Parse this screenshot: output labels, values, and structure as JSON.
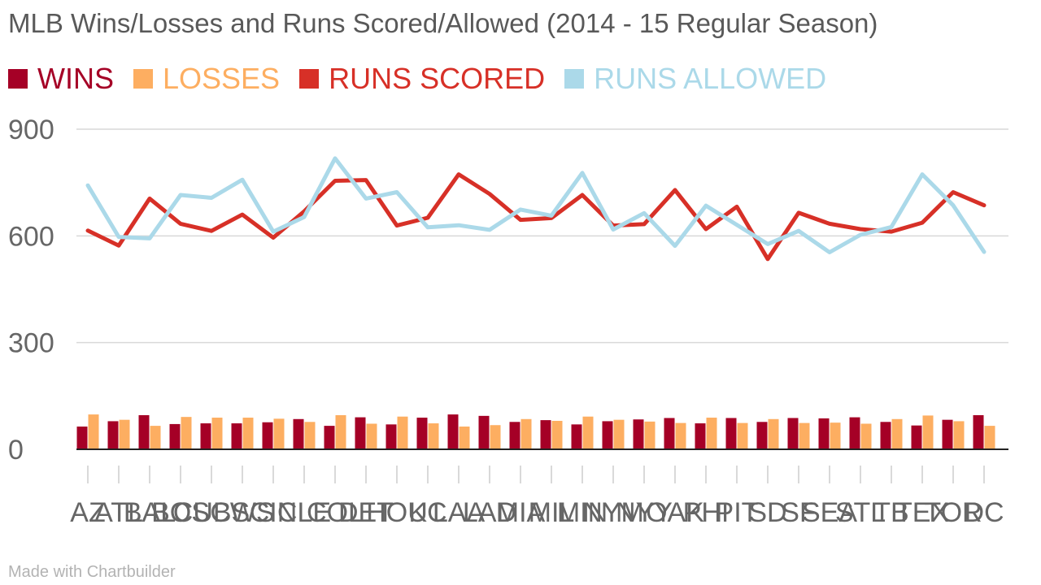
{
  "chart_data": {
    "type": "bar+line",
    "title": "MLB Wins/Losses and Runs Scored/Allowed (2014 - 15 Regular Season)",
    "categories": [
      "AZ",
      "ATL",
      "BAL",
      "BOS",
      "CUBS",
      "CWS",
      "CIN",
      "CLE",
      "COL",
      "DET",
      "HOU",
      "KC",
      "LAA",
      "LAD",
      "MIA",
      "MIL",
      "MIN",
      "NYM",
      "NYY",
      "OAK",
      "PHI",
      "PIT",
      "SD",
      "SF",
      "SEA",
      "STL",
      "TB",
      "TEX",
      "TOR",
      "DC"
    ],
    "ylim": [
      0,
      900
    ],
    "yticks": [
      0,
      300,
      600,
      900
    ],
    "grid": true,
    "legend_position": "top-left",
    "series": [
      {
        "name": "WINS",
        "kind": "bar",
        "color": "#a50026",
        "values": [
          64,
          79,
          96,
          71,
          73,
          73,
          76,
          85,
          66,
          90,
          70,
          89,
          98,
          94,
          77,
          82,
          70,
          79,
          84,
          88,
          73,
          88,
          77,
          88,
          87,
          90,
          77,
          67,
          83,
          96
        ]
      },
      {
        "name": "LOSSES",
        "kind": "bar",
        "color": "#fdae61",
        "values": [
          98,
          83,
          66,
          91,
          89,
          89,
          86,
          77,
          96,
          72,
          92,
          73,
          64,
          68,
          85,
          80,
          92,
          83,
          78,
          74,
          89,
          74,
          85,
          74,
          75,
          72,
          85,
          95,
          79,
          66
        ]
      },
      {
        "name": "RUNS SCORED",
        "kind": "line",
        "color": "#d73027",
        "values": [
          615,
          573,
          705,
          634,
          614,
          660,
          595,
          669,
          755,
          757,
          629,
          651,
          773,
          718,
          645,
          650,
          715,
          629,
          633,
          729,
          619,
          682,
          535,
          665,
          634,
          619,
          612,
          637,
          723,
          686
        ]
      },
      {
        "name": "RUNS ALLOWED",
        "kind": "line",
        "color": "#abd9e9",
        "values": [
          742,
          597,
          593,
          715,
          707,
          758,
          612,
          653,
          818,
          705,
          723,
          624,
          630,
          617,
          674,
          657,
          777,
          618,
          664,
          572,
          685,
          631,
          577,
          614,
          554,
          603,
          625,
          773,
          686,
          555
        ]
      }
    ]
  },
  "footer": {
    "text": "Made with Chartbuilder"
  }
}
